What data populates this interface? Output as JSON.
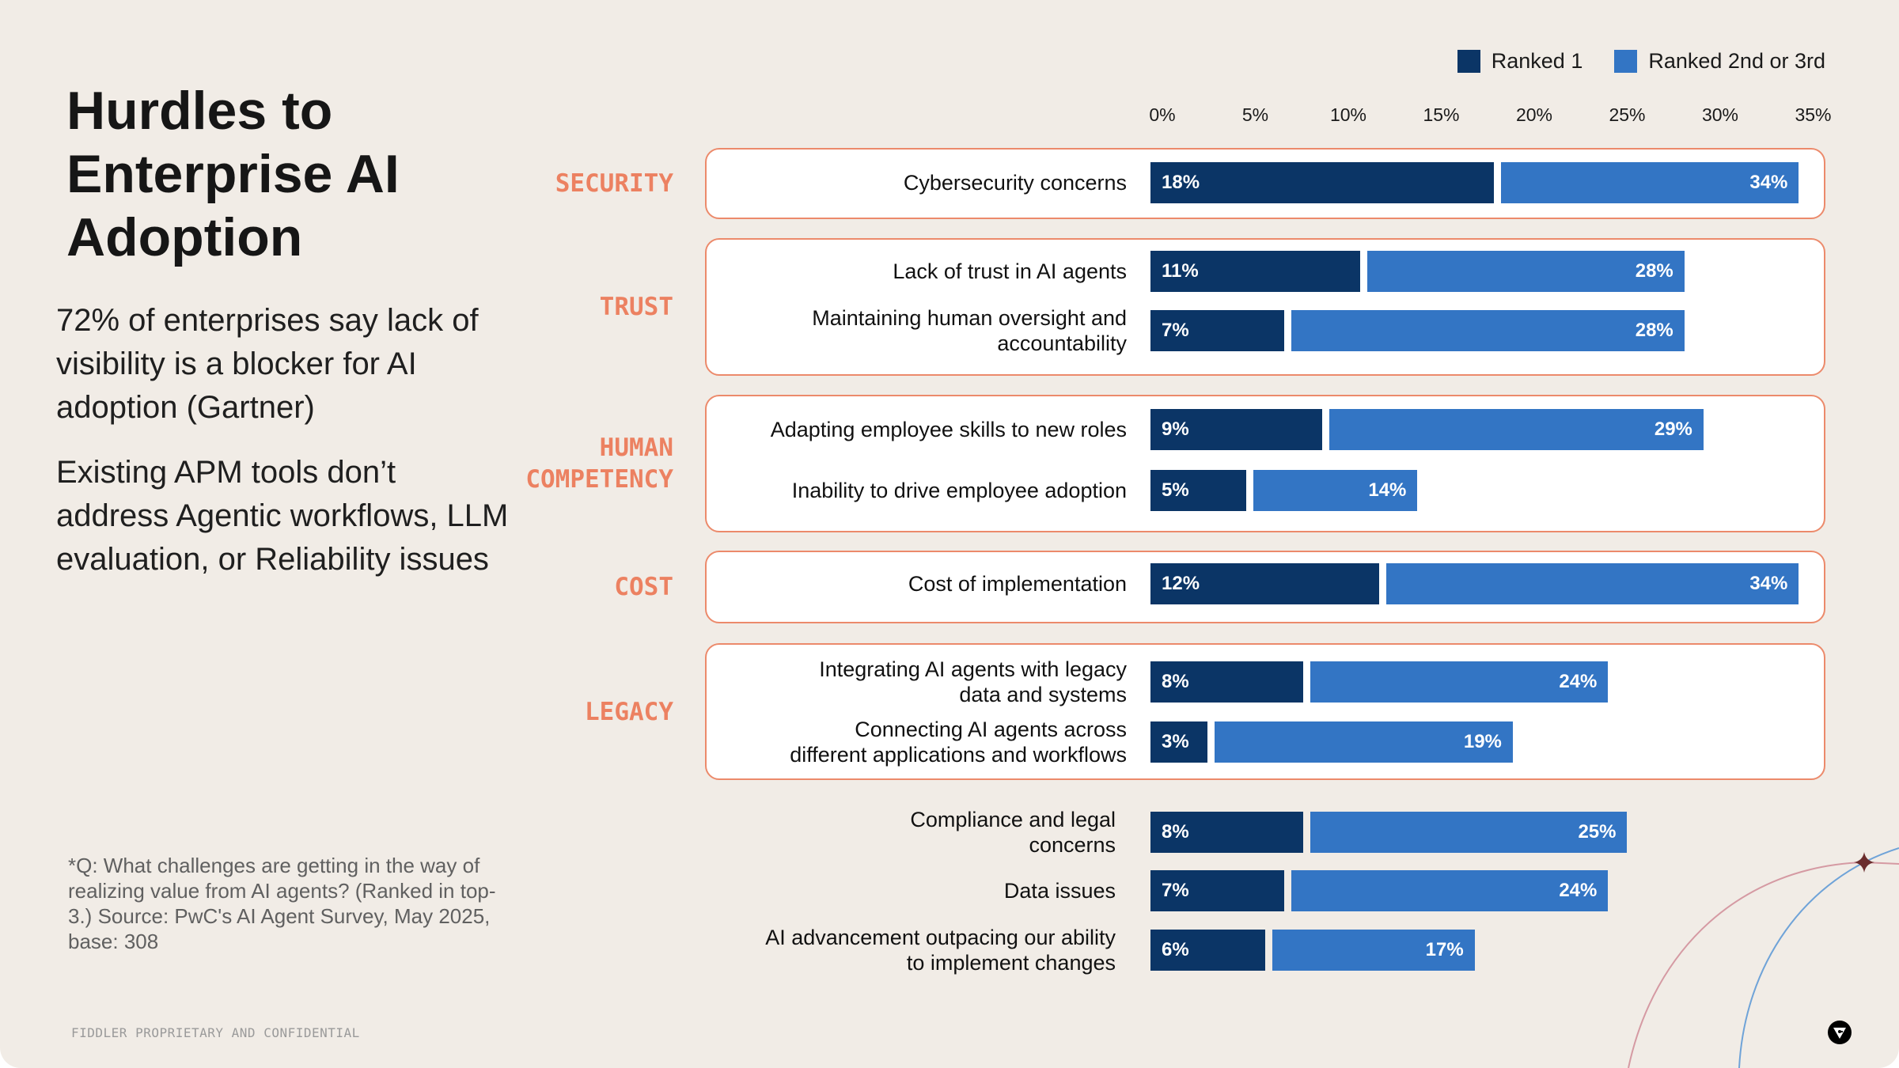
{
  "title": "Hurdles to Enterprise AI Adoption",
  "paragraphs": [
    "72% of enterprises say lack of visibility is a blocker for AI adoption (Gartner)",
    "Existing APM tools don’t address Agentic workflows, LLM evaluation, or Reliability issues"
  ],
  "footnote": "*Q: What challenges are getting in the way of realizing value from AI agents? (Ranked in top-3.) Source: PwC's AI Agent Survey, May 2025, base: 308",
  "confidential": "FIDDLER PROPRIETARY AND CONFIDENTIAL",
  "logo": "fiddler-logo-icon",
  "colors": {
    "ranked1": "#0b3566",
    "ranked2": "#3375c4",
    "group_accent": "#ec8161",
    "background": "#f1ece6"
  },
  "chart_data": {
    "type": "bar",
    "orientation": "horizontal",
    "legend": [
      "Ranked 1",
      "Ranked 2nd or 3rd"
    ],
    "legend_position": "top-right",
    "xlim": [
      0,
      35
    ],
    "xticks": [
      "0%",
      "5%",
      "10%",
      "15%",
      "20%",
      "25%",
      "30%",
      "35%"
    ],
    "groups": [
      {
        "label": "SECURITY",
        "items": [
          {
            "label": "Cybersecurity concerns",
            "ranked1": 18,
            "ranked2": 34
          }
        ]
      },
      {
        "label": "TRUST",
        "items": [
          {
            "label": "Lack of trust in AI agents",
            "ranked1": 11,
            "ranked2": 28
          },
          {
            "label": "Maintaining human oversight and\naccountability",
            "ranked1": 7,
            "ranked2": 28
          }
        ]
      },
      {
        "label": "HUMAN\nCOMPETENCY",
        "items": [
          {
            "label": "Adapting employee skills to new roles",
            "ranked1": 9,
            "ranked2": 29
          },
          {
            "label": "Inability to drive employee adoption",
            "ranked1": 5,
            "ranked2": 14
          }
        ]
      },
      {
        "label": "COST",
        "items": [
          {
            "label": "Cost of implementation",
            "ranked1": 12,
            "ranked2": 34
          }
        ]
      },
      {
        "label": "LEGACY",
        "items": [
          {
            "label": "Integrating AI agents with legacy\ndata and systems",
            "ranked1": 8,
            "ranked2": 24
          },
          {
            "label": "Connecting AI agents across\ndifferent applications and workflows",
            "ranked1": 3,
            "ranked2": 19
          }
        ]
      },
      {
        "label": "",
        "items": [
          {
            "label": "Compliance and legal\nconcerns",
            "ranked1": 8,
            "ranked2": 25
          },
          {
            "label": "Data issues",
            "ranked1": 7,
            "ranked2": 24
          },
          {
            "label": "AI advancement outpacing our ability\nto implement changes",
            "ranked1": 6,
            "ranked2": 17
          }
        ]
      }
    ]
  }
}
